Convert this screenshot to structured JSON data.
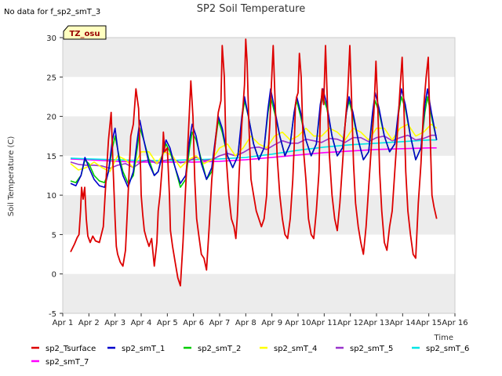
{
  "chart_data": {
    "type": "line",
    "title": "SP2 Soil Temperature",
    "no_data_note": "No data for f_sp2_smT_3",
    "badge": "TZ_osu",
    "xlabel": "Time",
    "ylabel": "Soil Temperature (C)",
    "xlim": [
      1,
      16
    ],
    "ylim": [
      -5,
      30
    ],
    "x_ticks": [
      1,
      2,
      3,
      4,
      5,
      6,
      7,
      8,
      9,
      10,
      11,
      12,
      13,
      14,
      15,
      16
    ],
    "x_tick_labels": [
      "Apr 1",
      "Apr 2",
      "Apr 3",
      "Apr 4",
      "Apr 5",
      "Apr 6",
      "Apr 7",
      "Apr 8",
      "Apr 9",
      "Apr 10",
      "Apr 11",
      "Apr 12",
      "Apr 13",
      "Apr 14",
      "Apr 15",
      "Apr 16"
    ],
    "y_ticks": [
      -5,
      0,
      5,
      10,
      15,
      20,
      25,
      30
    ],
    "y_tick_labels": [
      "-5",
      "0",
      "5",
      "10",
      "15",
      "20",
      "25",
      "30"
    ],
    "bands": [
      [
        -5,
        0
      ],
      [
        5,
        10
      ],
      [
        15,
        20
      ],
      [
        25,
        30
      ]
    ],
    "legend_position": "bottom",
    "series": [
      {
        "name": "sp2_Tsurface",
        "color": "#dd0000",
        "x": [
          1.3,
          1.45,
          1.55,
          1.62,
          1.68,
          1.72,
          1.78,
          1.84,
          1.9,
          1.96,
          2.05,
          2.15,
          2.25,
          2.4,
          2.55,
          2.62,
          2.75,
          2.85,
          2.92,
          3.0,
          3.05,
          3.1,
          3.2,
          3.3,
          3.4,
          3.5,
          3.6,
          3.7,
          3.8,
          3.9,
          3.98,
          4.0,
          4.06,
          4.12,
          4.2,
          4.3,
          4.4,
          4.5,
          4.6,
          4.65,
          4.72,
          4.8,
          4.85,
          4.9,
          5.0,
          5.08,
          5.12,
          5.2,
          5.3,
          5.4,
          5.5,
          5.6,
          5.7,
          5.75,
          5.82,
          5.9,
          5.98,
          6.05,
          6.12,
          6.2,
          6.3,
          6.4,
          6.5,
          6.6,
          6.7,
          6.8,
          6.95,
          7.05,
          7.1,
          7.18,
          7.25,
          7.35,
          7.45,
          7.55,
          7.62,
          7.68,
          7.75,
          7.85,
          7.95,
          8.0,
          8.05,
          8.12,
          8.2,
          8.3,
          8.4,
          8.5,
          8.6,
          8.7,
          8.8,
          8.85,
          8.92,
          8.98,
          9.05,
          9.12,
          9.2,
          9.3,
          9.4,
          9.5,
          9.6,
          9.7,
          9.8,
          9.85,
          9.9,
          9.95,
          10.0,
          10.05,
          10.12,
          10.2,
          10.3,
          10.4,
          10.5,
          10.6,
          10.7,
          10.8,
          10.85,
          10.92,
          10.98,
          11.05,
          11.12,
          11.2,
          11.3,
          11.4,
          11.5,
          11.6,
          11.7,
          11.8,
          11.9,
          11.98,
          12.05,
          12.12,
          12.2,
          12.3,
          12.4,
          12.5,
          12.6,
          12.7,
          12.8,
          12.9,
          12.98,
          13.05,
          13.12,
          13.2,
          13.3,
          13.4,
          13.5,
          13.6,
          13.7,
          13.8,
          13.9,
          13.98,
          14.05,
          14.12,
          14.2,
          14.3,
          14.4,
          14.5,
          14.6,
          14.7,
          14.8,
          14.9,
          14.98,
          15.05,
          15.12,
          15.2,
          15.3
        ],
        "values": [
          2.8,
          3.8,
          4.6,
          5.0,
          8.0,
          11.0,
          9.5,
          11.0,
          7.0,
          4.8,
          4.0,
          4.8,
          4.2,
          4.0,
          6.0,
          10.0,
          17.0,
          20.5,
          14.0,
          7.0,
          3.5,
          2.5,
          1.5,
          1.0,
          3.0,
          10.0,
          17.5,
          19.0,
          23.5,
          21.0,
          13.0,
          10.0,
          7.5,
          5.5,
          4.5,
          3.5,
          4.5,
          1.0,
          4.0,
          8.0,
          10.0,
          13.5,
          18.0,
          15.5,
          16.0,
          10.0,
          5.5,
          3.5,
          1.5,
          -0.5,
          -1.5,
          4.0,
          11.0,
          14.0,
          19.0,
          24.5,
          20.0,
          12.0,
          7.0,
          5.0,
          2.5,
          2.0,
          0.5,
          6.0,
          12.0,
          15.5,
          20.5,
          22.0,
          29.0,
          25.0,
          15.0,
          10.0,
          7.0,
          6.0,
          4.5,
          7.5,
          13.0,
          19.0,
          24.0,
          29.8,
          27.0,
          19.0,
          12.0,
          10.0,
          8.0,
          7.0,
          6.0,
          7.0,
          10.0,
          15.0,
          19.0,
          24.0,
          29.0,
          22.0,
          15.0,
          10.0,
          7.0,
          5.0,
          4.5,
          7.0,
          12.0,
          16.0,
          21.5,
          22.5,
          23.0,
          28.0,
          25.0,
          16.0,
          12.0,
          7.0,
          5.0,
          4.5,
          8.0,
          13.0,
          20.0,
          23.5,
          21.5,
          29.0,
          22.0,
          15.0,
          10.0,
          7.0,
          5.5,
          9.0,
          14.0,
          19.0,
          23.0,
          29.0,
          22.0,
          14.0,
          9.0,
          6.0,
          4.0,
          2.5,
          6.0,
          11.0,
          16.0,
          20.5,
          27.0,
          21.0,
          13.0,
          8.0,
          4.0,
          3.0,
          6.0,
          8.0,
          13.0,
          18.0,
          23.5,
          27.5,
          21.0,
          13.0,
          8.0,
          5.0,
          2.5,
          2.0,
          9.0,
          14.0,
          21.0,
          25.0,
          27.5,
          18.0,
          10.0,
          8.5,
          7.0
        ]
      },
      {
        "name": "sp2_smT_1",
        "color": "#0000cc",
        "x": [
          1.3,
          1.5,
          1.7,
          1.85,
          2.0,
          2.2,
          2.4,
          2.6,
          2.75,
          2.9,
          3.0,
          3.15,
          3.3,
          3.5,
          3.7,
          3.85,
          3.95,
          4.1,
          4.3,
          4.5,
          4.65,
          4.8,
          4.95,
          5.1,
          5.3,
          5.5,
          5.7,
          5.85,
          5.95,
          6.1,
          6.3,
          6.5,
          6.7,
          6.85,
          6.95,
          7.1,
          7.3,
          7.5,
          7.7,
          7.85,
          7.95,
          8.1,
          8.3,
          8.5,
          8.7,
          8.85,
          8.95,
          9.1,
          9.3,
          9.5,
          9.7,
          9.85,
          9.95,
          10.1,
          10.3,
          10.5,
          10.7,
          10.85,
          10.95,
          11.1,
          11.3,
          11.5,
          11.7,
          11.85,
          11.95,
          12.1,
          12.3,
          12.5,
          12.7,
          12.85,
          12.95,
          13.1,
          13.3,
          13.5,
          13.7,
          13.85,
          13.95,
          14.1,
          14.3,
          14.5,
          14.7,
          14.85,
          14.95,
          15.1,
          15.3
        ],
        "values": [
          11.5,
          11.2,
          12.5,
          14.8,
          13.5,
          12.0,
          11.2,
          11.0,
          13.0,
          17.0,
          18.5,
          14.5,
          12.5,
          11.0,
          13.0,
          17.0,
          19.5,
          17.0,
          14.0,
          12.5,
          13.0,
          15.0,
          17.0,
          16.0,
          13.5,
          11.5,
          12.5,
          17.0,
          19.0,
          17.5,
          14.0,
          12.0,
          13.5,
          17.5,
          20.0,
          18.5,
          15.0,
          13.5,
          15.0,
          20.0,
          22.5,
          20.0,
          16.5,
          14.5,
          16.0,
          21.0,
          23.5,
          21.0,
          17.5,
          15.0,
          16.5,
          20.5,
          22.5,
          20.5,
          17.0,
          15.0,
          16.5,
          21.5,
          23.5,
          21.5,
          17.5,
          15.0,
          16.0,
          20.5,
          22.5,
          20.5,
          17.0,
          14.5,
          15.5,
          20.5,
          23.0,
          21.0,
          17.5,
          15.5,
          16.5,
          21.0,
          23.5,
          21.5,
          17.5,
          14.5,
          16.0,
          21.5,
          23.5,
          20.5,
          17.0
        ]
      },
      {
        "name": "sp2_smT_2",
        "color": "#00cc00",
        "x": [
          1.3,
          1.5,
          1.7,
          1.85,
          2.0,
          2.2,
          2.4,
          2.6,
          2.75,
          2.9,
          3.0,
          3.15,
          3.3,
          3.5,
          3.7,
          3.85,
          3.95,
          4.1,
          4.3,
          4.5,
          4.65,
          4.8,
          4.95,
          5.1,
          5.3,
          5.5,
          5.7,
          5.85,
          5.95,
          6.1,
          6.3,
          6.5,
          6.7,
          6.85,
          6.95,
          7.1,
          7.3,
          7.5,
          7.7,
          7.85,
          7.95,
          8.1,
          8.3,
          8.5,
          8.7,
          8.85,
          8.95,
          9.1,
          9.3,
          9.5,
          9.7,
          9.85,
          9.95,
          10.1,
          10.3,
          10.5,
          10.7,
          10.85,
          10.95,
          11.1,
          11.3,
          11.5,
          11.7,
          11.85,
          11.95,
          12.1,
          12.3,
          12.5,
          12.7,
          12.85,
          12.95,
          13.1,
          13.3,
          13.5,
          13.7,
          13.85,
          13.95,
          14.1,
          14.3,
          14.5,
          14.7,
          14.85,
          14.95,
          15.1,
          15.3
        ],
        "values": [
          11.8,
          11.6,
          12.5,
          14.5,
          14.0,
          12.5,
          11.8,
          11.6,
          13.0,
          16.0,
          17.5,
          15.0,
          13.0,
          11.5,
          12.5,
          16.0,
          18.5,
          17.0,
          14.5,
          12.5,
          13.0,
          15.0,
          16.5,
          15.5,
          13.5,
          11.0,
          12.0,
          16.0,
          18.0,
          17.0,
          14.5,
          12.0,
          13.0,
          17.0,
          19.5,
          18.0,
          15.0,
          13.5,
          15.0,
          19.5,
          22.0,
          20.0,
          16.5,
          14.5,
          16.0,
          20.5,
          22.5,
          20.5,
          17.5,
          15.0,
          16.5,
          20.5,
          22.0,
          20.0,
          17.0,
          15.0,
          16.5,
          21.0,
          22.5,
          21.0,
          17.5,
          15.0,
          16.0,
          20.5,
          22.0,
          20.0,
          17.0,
          14.5,
          15.5,
          20.0,
          22.0,
          20.5,
          17.5,
          15.5,
          16.5,
          20.5,
          22.5,
          21.0,
          17.5,
          14.5,
          16.0,
          20.5,
          22.5,
          20.0,
          17.0
        ]
      },
      {
        "name": "sp2_smT_4",
        "color": "#ffff00",
        "x": [
          1.3,
          1.6,
          1.9,
          2.2,
          2.5,
          2.8,
          3.1,
          3.4,
          3.7,
          4.0,
          4.3,
          4.6,
          4.9,
          5.2,
          5.5,
          5.8,
          6.1,
          6.4,
          6.7,
          7.0,
          7.3,
          7.6,
          7.9,
          8.2,
          8.5,
          8.8,
          9.1,
          9.4,
          9.7,
          10.0,
          10.3,
          10.6,
          10.9,
          11.2,
          11.5,
          11.8,
          12.1,
          12.4,
          12.7,
          13.0,
          13.3,
          13.6,
          13.9,
          14.2,
          14.5,
          14.8,
          15.1,
          15.3
        ],
        "values": [
          14.0,
          13.2,
          13.5,
          14.2,
          13.5,
          13.0,
          15.0,
          14.5,
          13.5,
          15.5,
          15.5,
          14.0,
          15.5,
          15.0,
          13.5,
          14.5,
          15.0,
          14.0,
          14.5,
          16.0,
          16.5,
          15.0,
          16.0,
          17.5,
          16.5,
          16.0,
          17.5,
          18.0,
          17.0,
          17.5,
          18.5,
          17.5,
          17.5,
          18.5,
          18.0,
          17.0,
          18.5,
          18.0,
          17.0,
          18.5,
          18.5,
          17.0,
          18.5,
          19.0,
          17.5,
          18.0,
          19.0,
          18.5
        ]
      },
      {
        "name": "sp2_smT_5",
        "color": "#9933cc",
        "x": [
          1.3,
          1.6,
          1.9,
          2.2,
          2.5,
          2.8,
          3.1,
          3.4,
          3.7,
          4.0,
          4.3,
          4.6,
          4.9,
          5.2,
          5.5,
          5.8,
          6.1,
          6.4,
          6.7,
          7.0,
          7.3,
          7.6,
          7.9,
          8.2,
          8.5,
          8.8,
          9.1,
          9.4,
          9.7,
          10.0,
          10.3,
          10.6,
          10.9,
          11.2,
          11.5,
          11.8,
          12.1,
          12.4,
          12.7,
          13.0,
          13.3,
          13.6,
          13.9,
          14.2,
          14.5,
          14.8,
          15.1,
          15.3
        ],
        "values": [
          14.2,
          13.9,
          13.8,
          13.8,
          13.7,
          13.4,
          13.8,
          14.0,
          13.5,
          14.2,
          14.5,
          14.0,
          14.4,
          14.6,
          14.1,
          14.3,
          14.8,
          14.4,
          14.5,
          15.0,
          15.3,
          15.0,
          15.4,
          16.0,
          16.1,
          15.8,
          16.4,
          16.9,
          16.6,
          16.6,
          17.1,
          16.9,
          16.7,
          17.2,
          17.1,
          16.7,
          17.3,
          17.3,
          16.8,
          17.3,
          17.5,
          16.9,
          17.3,
          17.6,
          17.0,
          17.2,
          17.6,
          17.6
        ]
      },
      {
        "name": "sp2_smT_6",
        "color": "#00e5e5",
        "x": [
          1.3,
          2.0,
          3.0,
          4.0,
          5.0,
          6.0,
          7.0,
          8.0,
          9.0,
          10.0,
          11.0,
          12.0,
          13.0,
          14.0,
          15.0,
          15.3
        ],
        "values": [
          14.7,
          14.6,
          14.5,
          14.4,
          14.4,
          14.5,
          14.6,
          14.8,
          15.2,
          15.7,
          16.1,
          16.4,
          16.6,
          16.8,
          17.0,
          17.0
        ]
      },
      {
        "name": "sp2_smT_7",
        "color": "#ff00ff",
        "x": [
          1.3,
          2.0,
          3.0,
          4.0,
          5.0,
          6.0,
          7.0,
          8.0,
          9.0,
          10.0,
          11.0,
          12.0,
          13.0,
          14.0,
          15.0,
          15.3
        ],
        "values": [
          14.6,
          14.5,
          14.3,
          14.2,
          14.2,
          14.2,
          14.3,
          14.5,
          14.8,
          15.1,
          15.4,
          15.6,
          15.8,
          15.9,
          16.0,
          16.0
        ]
      }
    ]
  }
}
